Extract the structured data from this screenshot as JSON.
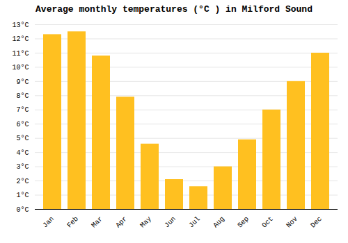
{
  "chart_data": {
    "type": "bar",
    "title": "Average monthly temperatures (°C ) in Milford Sound",
    "categories": [
      "Jan",
      "Feb",
      "Mar",
      "Apr",
      "May",
      "Jun",
      "Jul",
      "Aug",
      "Sep",
      "Oct",
      "Nov",
      "Dec"
    ],
    "values": [
      12.3,
      12.5,
      10.8,
      7.9,
      4.6,
      2.1,
      1.6,
      3.0,
      4.9,
      7.0,
      9.0,
      11.0
    ],
    "color": "#FFC020",
    "ylim": [
      0,
      13
    ],
    "yticks": [
      {
        "value": 0,
        "label": "0°C"
      },
      {
        "value": 1,
        "label": "1°C"
      },
      {
        "value": 2,
        "label": "2°C"
      },
      {
        "value": 3,
        "label": "3°C"
      },
      {
        "value": 4,
        "label": "4°C"
      },
      {
        "value": 5,
        "label": "5°C"
      },
      {
        "value": 6,
        "label": "6°C"
      },
      {
        "value": 7,
        "label": "7°C"
      },
      {
        "value": 8,
        "label": "8°C"
      },
      {
        "value": 9,
        "label": "9°C"
      },
      {
        "value": 10,
        "label": "10°C"
      },
      {
        "value": 11,
        "label": "11°C"
      },
      {
        "value": 12,
        "label": "12°C"
      },
      {
        "value": 13,
        "label": "13°C"
      }
    ],
    "grid": true
  }
}
